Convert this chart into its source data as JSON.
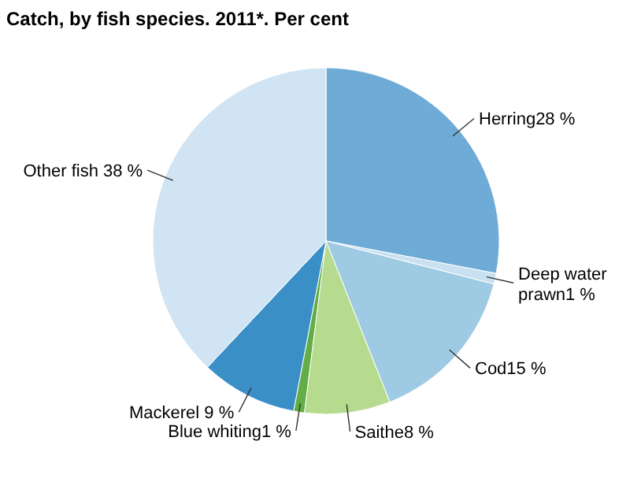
{
  "chart_data": {
    "type": "pie",
    "title": "Catch, by fish species. 2011*. Per cent",
    "categories": [
      "Herring28 %",
      "Deep water prawn1 %",
      "Cod15 %",
      "Saithe8 %",
      "Blue whiting1 %",
      "Mackerel 9 %",
      "Other fish 38 %"
    ],
    "values": [
      28,
      1,
      15,
      8,
      1,
      9,
      38
    ],
    "colors": [
      "#6eabd7",
      "#c9e0f1",
      "#9ecae3",
      "#b6db8e",
      "#62ad46",
      "#3b8fc7",
      "#d0e4f3"
    ]
  }
}
